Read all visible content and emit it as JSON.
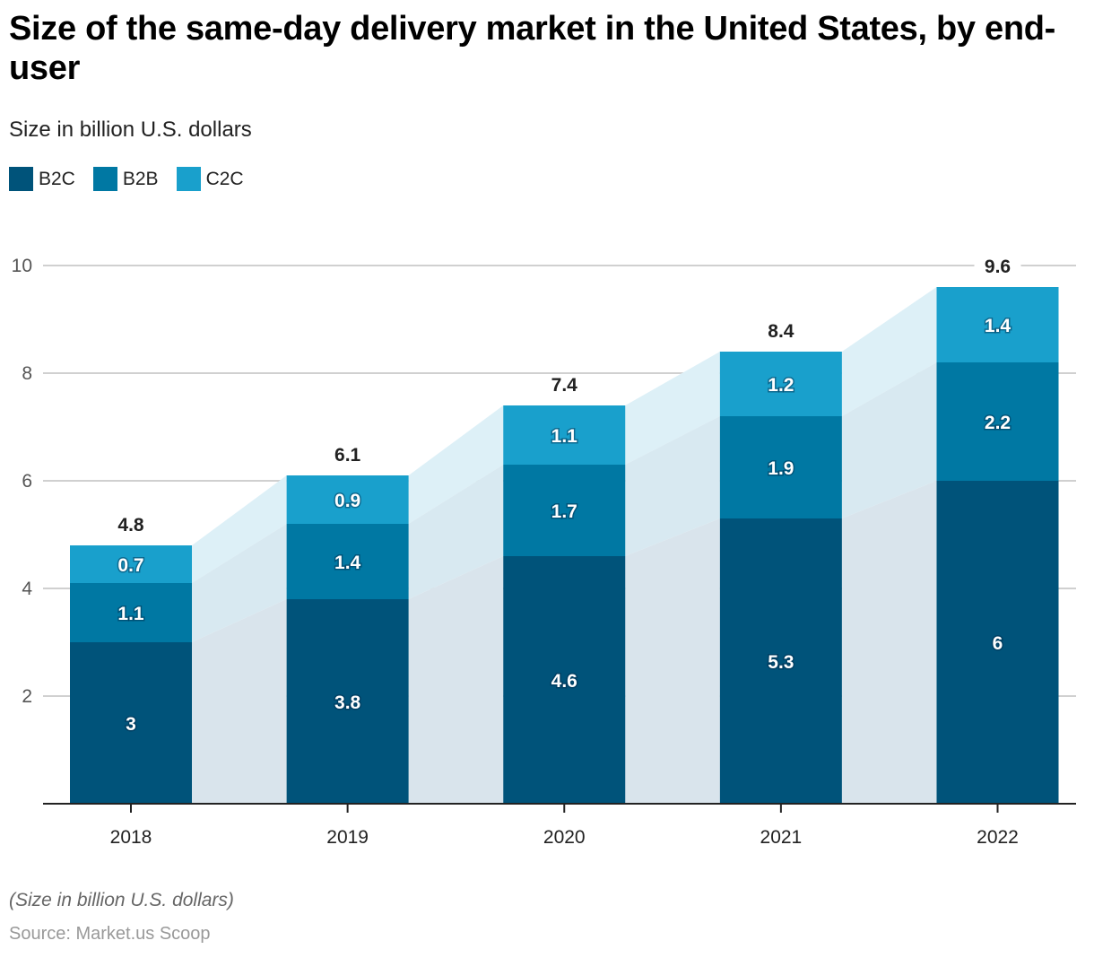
{
  "chart_data": {
    "type": "bar",
    "stacked": true,
    "title": "Size of the same-day delivery market in the United States, by end-user",
    "subtitle": "Size in billion U.S. dollars",
    "xlabel": "",
    "ylabel": "",
    "categories": [
      "2018",
      "2019",
      "2020",
      "2021",
      "2022"
    ],
    "series": [
      {
        "name": "B2C",
        "color": "#00537a",
        "values": [
          3,
          3.8,
          4.6,
          5.3,
          6
        ]
      },
      {
        "name": "B2B",
        "color": "#0078a3",
        "values": [
          1.1,
          1.4,
          1.7,
          1.9,
          2.2
        ]
      },
      {
        "name": "C2C",
        "color": "#19a0cc",
        "values": [
          0.7,
          0.9,
          1.1,
          1.2,
          1.4
        ]
      }
    ],
    "totals": [
      4.8,
      6.1,
      7.4,
      8.4,
      9.6
    ],
    "segment_labels": [
      [
        "3",
        "3.8",
        "4.6",
        "5.3",
        "6"
      ],
      [
        "1.1",
        "1.4",
        "1.7",
        "1.9",
        "2.2"
      ],
      [
        "0.7",
        "0.9",
        "1.1",
        "1.2",
        "1.4"
      ]
    ],
    "total_labels": [
      "4.8",
      "6.1",
      "7.4",
      "8.4",
      "9.6"
    ],
    "ylim": [
      0,
      10
    ],
    "yticks": [
      2,
      4,
      6,
      8,
      10
    ],
    "ytick_labels": [
      "2",
      "4",
      "6",
      "8",
      "10"
    ],
    "grid": true,
    "legend_position": "top-left",
    "connector_areas": true
  },
  "legend": [
    {
      "label": "B2C",
      "color": "#00537a"
    },
    {
      "label": "B2B",
      "color": "#0078a3"
    },
    {
      "label": "C2C",
      "color": "#19a0cc"
    }
  ],
  "footer": {
    "note": "(Size in billion U.S. dollars)",
    "source": "Source: Market.us Scoop"
  }
}
